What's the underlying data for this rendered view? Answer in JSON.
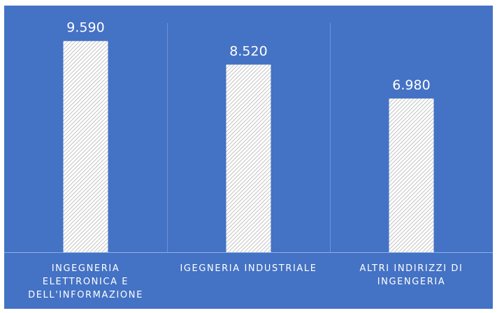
{
  "chart_data": {
    "type": "bar",
    "categories": [
      "INGEGNERIA\nELETTRONICA E\nDELL'INFORMAZIONE",
      "IGEGNERIA INDUSTRIALE",
      "ALTRI INDIRIZZI DI\nINGENGERIA"
    ],
    "values": [
      9590,
      8520,
      6980
    ],
    "value_labels": [
      "9.590",
      "8.520",
      "6.980"
    ],
    "title": "",
    "xlabel": "",
    "ylabel": "",
    "ylim": [
      0,
      11200
    ],
    "grid": false,
    "legend": "none",
    "colors": {
      "background": "#4472C4",
      "bar_fill": "#ffffff",
      "bar_hatch": "#bfbfbf",
      "text": "#ffffff"
    }
  }
}
